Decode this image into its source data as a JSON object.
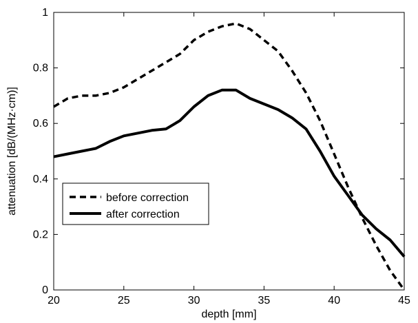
{
  "chart_data": {
    "type": "line",
    "xlabel": "depth [mm]",
    "ylabel": "attenuation [dB/(MHz·cm)]",
    "xlim": [
      20,
      45
    ],
    "ylim": [
      0,
      1
    ],
    "xticks": [
      "20",
      "25",
      "30",
      "35",
      "40",
      "45"
    ],
    "yticks": [
      "0",
      "0.2",
      "0.4",
      "0.6",
      "0.8",
      "1"
    ],
    "grid": false,
    "legend_position": "lower-left",
    "series": [
      {
        "name": "before correction",
        "style": "dashed",
        "x": [
          20,
          21,
          22,
          23,
          24,
          25,
          26,
          27,
          28,
          29,
          30,
          31,
          32,
          33,
          34,
          35,
          36,
          37,
          38,
          39,
          40,
          41,
          42,
          43,
          44,
          45
        ],
        "y": [
          0.66,
          0.69,
          0.7,
          0.7,
          0.71,
          0.73,
          0.76,
          0.79,
          0.82,
          0.85,
          0.9,
          0.93,
          0.95,
          0.96,
          0.94,
          0.9,
          0.86,
          0.79,
          0.71,
          0.61,
          0.49,
          0.37,
          0.26,
          0.16,
          0.07,
          0.0
        ]
      },
      {
        "name": "after correction",
        "style": "solid",
        "x": [
          20,
          21,
          22,
          23,
          24,
          25,
          26,
          27,
          28,
          29,
          30,
          31,
          32,
          33,
          34,
          35,
          36,
          37,
          38,
          39,
          40,
          41,
          42,
          43,
          44,
          45
        ],
        "y": [
          0.48,
          0.49,
          0.5,
          0.51,
          0.535,
          0.555,
          0.565,
          0.575,
          0.58,
          0.61,
          0.66,
          0.7,
          0.72,
          0.72,
          0.69,
          0.67,
          0.65,
          0.62,
          0.58,
          0.5,
          0.41,
          0.34,
          0.27,
          0.22,
          0.18,
          0.12
        ]
      }
    ]
  }
}
